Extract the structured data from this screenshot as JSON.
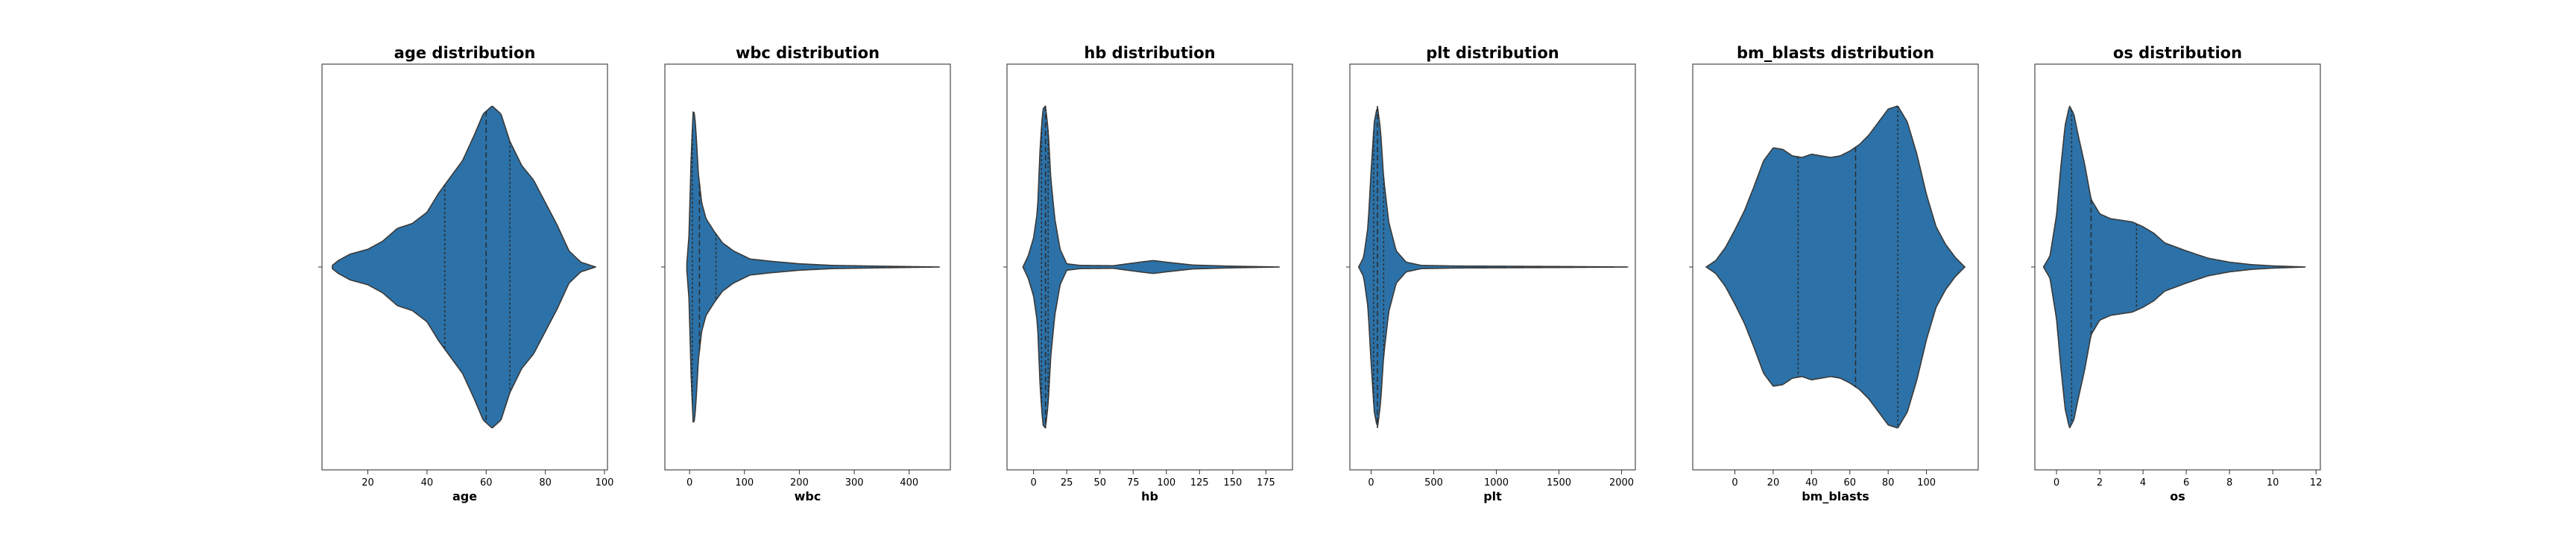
{
  "colors": {
    "violin_fill": "#2c72a8",
    "violin_edge": "#3a3a3a",
    "quartile_line": "#2b2b2b",
    "frame": "#4a4a4a"
  },
  "chart_data": [
    {
      "type": "violin",
      "title": "age distribution",
      "xlabel": "age",
      "xlim": [
        4.5,
        101
      ],
      "ticks": [
        20,
        40,
        60,
        80,
        100
      ],
      "extent": [
        8,
        97
      ],
      "quartiles": [
        46,
        60,
        68
      ],
      "density": [
        [
          8,
          0.01
        ],
        [
          10,
          0.04
        ],
        [
          14,
          0.08
        ],
        [
          20,
          0.11
        ],
        [
          25,
          0.16
        ],
        [
          30,
          0.24
        ],
        [
          35,
          0.27
        ],
        [
          40,
          0.34
        ],
        [
          44,
          0.46
        ],
        [
          48,
          0.56
        ],
        [
          52,
          0.66
        ],
        [
          56,
          0.82
        ],
        [
          59,
          0.95
        ],
        [
          62,
          1.0
        ],
        [
          65,
          0.95
        ],
        [
          68,
          0.78
        ],
        [
          72,
          0.63
        ],
        [
          76,
          0.54
        ],
        [
          80,
          0.4
        ],
        [
          84,
          0.26
        ],
        [
          88,
          0.1
        ],
        [
          92,
          0.03
        ],
        [
          97,
          0.0
        ]
      ]
    },
    {
      "type": "violin",
      "title": "wbc distribution",
      "xlabel": "wbc",
      "xlim": [
        -45,
        475
      ],
      "ticks": [
        0,
        100,
        200,
        300,
        400
      ],
      "extent": [
        -5,
        455
      ],
      "quartiles": [
        5,
        18,
        48
      ],
      "density": [
        [
          -5,
          0.02
        ],
        [
          -1,
          0.2
        ],
        [
          3,
          0.7
        ],
        [
          7,
          1.0
        ],
        [
          11,
          0.88
        ],
        [
          16,
          0.58
        ],
        [
          22,
          0.4
        ],
        [
          30,
          0.3
        ],
        [
          45,
          0.22
        ],
        [
          60,
          0.15
        ],
        [
          80,
          0.1
        ],
        [
          110,
          0.05
        ],
        [
          150,
          0.035
        ],
        [
          200,
          0.02
        ],
        [
          260,
          0.01
        ],
        [
          350,
          0.005
        ],
        [
          455,
          0.0
        ]
      ]
    },
    {
      "type": "violin",
      "title": "hb distribution",
      "xlabel": "hb",
      "xlim": [
        -20,
        195
      ],
      "ticks": [
        0,
        25,
        50,
        75,
        100,
        125,
        150,
        175
      ],
      "extent": [
        -8,
        185
      ],
      "quartiles": [
        6,
        9,
        11
      ],
      "density": [
        [
          -8,
          0.0
        ],
        [
          -4,
          0.07
        ],
        [
          0,
          0.18
        ],
        [
          3,
          0.35
        ],
        [
          5,
          0.75
        ],
        [
          7,
          0.98
        ],
        [
          9,
          1.0
        ],
        [
          11,
          0.85
        ],
        [
          13,
          0.55
        ],
        [
          16,
          0.3
        ],
        [
          20,
          0.11
        ],
        [
          25,
          0.02
        ],
        [
          35,
          0.01
        ],
        [
          60,
          0.008
        ],
        [
          80,
          0.03
        ],
        [
          90,
          0.04
        ],
        [
          100,
          0.03
        ],
        [
          120,
          0.012
        ],
        [
          150,
          0.005
        ],
        [
          185,
          0.0
        ]
      ]
    },
    {
      "type": "violin",
      "title": "plt distribution",
      "xlabel": "plt",
      "xlim": [
        -170,
        2110
      ],
      "ticks": [
        0,
        500,
        1000,
        1500,
        2000
      ],
      "extent": [
        -100,
        2050
      ],
      "quartiles": [
        20,
        50,
        100
      ],
      "density": [
        [
          -100,
          0.0
        ],
        [
          -60,
          0.06
        ],
        [
          -25,
          0.25
        ],
        [
          0,
          0.6
        ],
        [
          25,
          0.9
        ],
        [
          50,
          1.0
        ],
        [
          75,
          0.85
        ],
        [
          100,
          0.55
        ],
        [
          140,
          0.28
        ],
        [
          200,
          0.1
        ],
        [
          280,
          0.03
        ],
        [
          400,
          0.01
        ],
        [
          700,
          0.006
        ],
        [
          1000,
          0.005
        ],
        [
          1500,
          0.003
        ],
        [
          2050,
          0.0
        ]
      ]
    },
    {
      "type": "violin",
      "title": "bm_blasts distribution",
      "xlabel": "bm_blasts",
      "xlim": [
        -22,
        127
      ],
      "ticks": [
        0,
        20,
        40,
        60,
        80,
        100
      ],
      "extent": [
        -15,
        120
      ],
      "quartiles": [
        33,
        63,
        85
      ],
      "density": [
        [
          -15,
          0.0
        ],
        [
          -10,
          0.04
        ],
        [
          -5,
          0.12
        ],
        [
          0,
          0.23
        ],
        [
          5,
          0.35
        ],
        [
          10,
          0.5
        ],
        [
          15,
          0.66
        ],
        [
          20,
          0.74
        ],
        [
          25,
          0.73
        ],
        [
          30,
          0.69
        ],
        [
          35,
          0.68
        ],
        [
          40,
          0.7
        ],
        [
          45,
          0.69
        ],
        [
          50,
          0.68
        ],
        [
          55,
          0.69
        ],
        [
          60,
          0.72
        ],
        [
          65,
          0.76
        ],
        [
          70,
          0.82
        ],
        [
          75,
          0.9
        ],
        [
          80,
          0.98
        ],
        [
          85,
          1.0
        ],
        [
          90,
          0.9
        ],
        [
          95,
          0.7
        ],
        [
          100,
          0.45
        ],
        [
          105,
          0.25
        ],
        [
          110,
          0.14
        ],
        [
          115,
          0.06
        ],
        [
          120,
          0.0
        ]
      ]
    },
    {
      "type": "violin",
      "title": "os distribution",
      "xlabel": "os",
      "xlim": [
        -1.0,
        12.2
      ],
      "ticks": [
        0,
        2,
        4,
        6,
        8,
        10,
        12
      ],
      "extent": [
        -0.6,
        11.5
      ],
      "quartiles": [
        0.7,
        1.6,
        3.7
      ],
      "density": [
        [
          -0.6,
          0.0
        ],
        [
          -0.3,
          0.07
        ],
        [
          0,
          0.32
        ],
        [
          0.2,
          0.62
        ],
        [
          0.4,
          0.88
        ],
        [
          0.6,
          1.0
        ],
        [
          0.8,
          0.95
        ],
        [
          1.0,
          0.82
        ],
        [
          1.3,
          0.64
        ],
        [
          1.6,
          0.42
        ],
        [
          2.0,
          0.33
        ],
        [
          2.5,
          0.3
        ],
        [
          3.0,
          0.29
        ],
        [
          3.5,
          0.28
        ],
        [
          4.0,
          0.25
        ],
        [
          4.5,
          0.21
        ],
        [
          5.0,
          0.15
        ],
        [
          6.0,
          0.1
        ],
        [
          7.0,
          0.055
        ],
        [
          8.0,
          0.03
        ],
        [
          9.0,
          0.015
        ],
        [
          10.0,
          0.007
        ],
        [
          11.5,
          0.0
        ]
      ]
    }
  ]
}
